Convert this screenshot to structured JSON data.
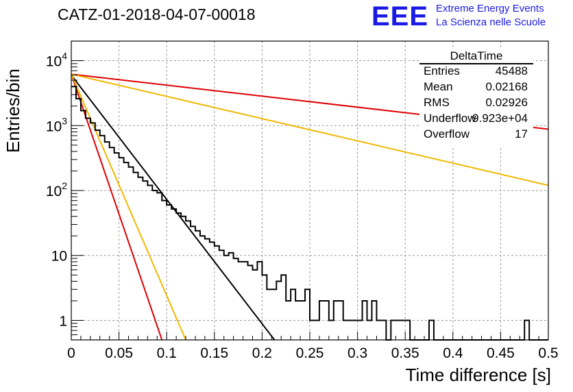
{
  "title": "CATZ-01-2018-04-07-00018",
  "logo": {
    "mark": "EEE",
    "line1": "Extreme Energy Events",
    "line2": "La Scienza nelle Scuole",
    "color": "#1a1ae6"
  },
  "stats": {
    "title": "DeltaTime",
    "rows": [
      {
        "key": "Entries",
        "value": "45488"
      },
      {
        "key": "Mean",
        "value": "0.02168"
      },
      {
        "key": "RMS",
        "value": "0.02926"
      },
      {
        "key": "Underflow",
        "value": "9.923e+04"
      },
      {
        "key": "Overflow",
        "value": "17"
      }
    ]
  },
  "chart_data": {
    "type": "line",
    "title": "CATZ-01-2018-04-07-00018",
    "xlabel": "Time difference [s]",
    "ylabel": "Entries/bin",
    "xlim": [
      0,
      0.5
    ],
    "ylim": [
      0.5,
      20000
    ],
    "yscale": "log",
    "grid": true,
    "legend": "top-right",
    "x_ticks": [
      "0",
      "0.05",
      "0.1",
      "0.15",
      "0.2",
      "0.25",
      "0.3",
      "0.35",
      "0.4",
      "0.45",
      "0.5"
    ],
    "y_ticks": [
      {
        "value": 1,
        "label": "1"
      },
      {
        "value": 10,
        "label": "10"
      },
      {
        "value": 100,
        "label": "10^2"
      },
      {
        "value": 1000,
        "label": "10^3"
      },
      {
        "value": 10000,
        "label": "10^4"
      }
    ],
    "histogram": {
      "bin_width": 0.005,
      "color": "#000000",
      "values": [
        4000,
        2600,
        1700,
        1300,
        1100,
        850,
        700,
        560,
        460,
        380,
        320,
        270,
        230,
        190,
        160,
        140,
        120,
        100,
        92,
        70,
        60,
        52,
        45,
        40,
        34,
        28,
        24,
        20,
        18,
        16,
        14,
        12,
        10,
        11,
        9,
        8,
        8,
        7,
        6,
        8,
        5,
        3,
        3,
        4,
        5,
        2,
        3,
        2,
        2,
        3,
        1,
        1,
        2,
        2,
        1,
        2,
        2,
        1,
        1,
        1,
        1,
        2,
        1,
        2,
        1,
        1,
        0,
        1,
        1,
        1,
        1,
        0,
        0,
        0,
        0,
        1,
        0,
        0,
        0,
        0,
        0,
        0,
        0,
        0,
        0,
        0,
        0,
        0,
        0,
        0,
        0,
        0,
        0,
        0,
        0,
        1,
        0,
        0,
        0,
        0
      ]
    },
    "series": [
      {
        "color": "#000000",
        "x": [
          0,
          0.213
        ],
        "y": [
          6000,
          0.5
        ]
      },
      {
        "color": "#dd0000",
        "x": [
          0,
          0.5
        ],
        "y": [
          6200,
          880
        ]
      },
      {
        "color": "#f2b800",
        "x": [
          0,
          0.5
        ],
        "y": [
          6200,
          120
        ]
      },
      {
        "color": "#dd0000",
        "x": [
          0,
          0.095
        ],
        "y": [
          6200,
          0.5
        ]
      },
      {
        "color": "#f2b800",
        "x": [
          0,
          0.12
        ],
        "y": [
          6200,
          0.5
        ]
      }
    ]
  }
}
